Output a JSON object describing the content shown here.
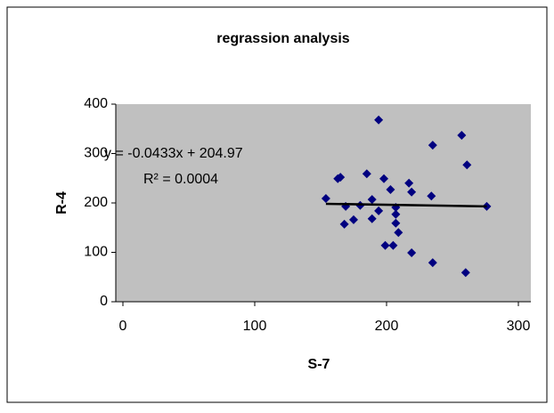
{
  "chart_data": {
    "type": "scatter",
    "title": "regrassion analysis",
    "x_label": "S-7",
    "y_label": "R-4",
    "x": [
      154,
      163,
      165,
      169,
      168,
      175,
      180,
      185,
      189,
      189,
      194,
      194,
      198,
      199,
      203,
      205,
      207,
      207,
      207,
      209,
      217,
      219,
      219,
      235,
      234,
      235,
      257,
      261,
      260,
      276
    ],
    "y": [
      209,
      249,
      252,
      193,
      157,
      166,
      195,
      259,
      207,
      168,
      184,
      368,
      249,
      114,
      227,
      114,
      191,
      177,
      159,
      140,
      240,
      222,
      99,
      317,
      214,
      79,
      337,
      277,
      59,
      193
    ],
    "color": "#000080",
    "xlim": [
      0,
      300
    ],
    "xticks": [
      0,
      100,
      200,
      300
    ],
    "ylim": [
      0,
      400
    ],
    "yticks": [
      0,
      100,
      200,
      300,
      400
    ],
    "trendline": {
      "slope": -0.0433,
      "intercept": 204.97,
      "equation": "y = -0.0433x + 204.97",
      "r2": "R² = 0.0004",
      "color": "#000000"
    },
    "plot_background": "#c0c0c0"
  }
}
